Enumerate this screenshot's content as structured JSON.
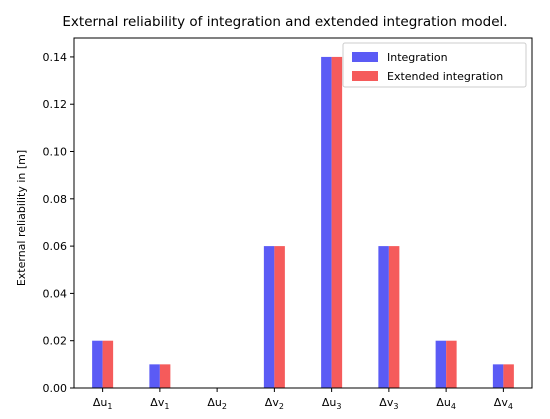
{
  "chart_data": {
    "type": "bar",
    "title": "External reliability of integration and extended integration model.",
    "xlabel": "",
    "ylabel": "External reliability in [m]",
    "categories": [
      {
        "base": "Δu",
        "sub": "1"
      },
      {
        "base": "Δv",
        "sub": "1"
      },
      {
        "base": "Δu",
        "sub": "2"
      },
      {
        "base": "Δv",
        "sub": "2"
      },
      {
        "base": "Δu",
        "sub": "3"
      },
      {
        "base": "Δv",
        "sub": "3"
      },
      {
        "base": "Δu",
        "sub": "4"
      },
      {
        "base": "Δv",
        "sub": "4"
      }
    ],
    "series": [
      {
        "name": "Integration",
        "color": "#5b5bf5",
        "values": [
          0.02,
          0.01,
          0.0,
          0.06,
          0.14,
          0.06,
          0.02,
          0.01
        ]
      },
      {
        "name": "Extended integration",
        "color": "#f55b5b",
        "values": [
          0.02,
          0.01,
          0.0,
          0.06,
          0.14,
          0.06,
          0.02,
          0.01
        ]
      }
    ],
    "ylim": [
      0,
      0.148
    ],
    "yticks": [
      "0.00",
      "0.02",
      "0.04",
      "0.06",
      "0.08",
      "0.10",
      "0.12",
      "0.14"
    ],
    "legend_position": "top-right",
    "grid": false
  }
}
